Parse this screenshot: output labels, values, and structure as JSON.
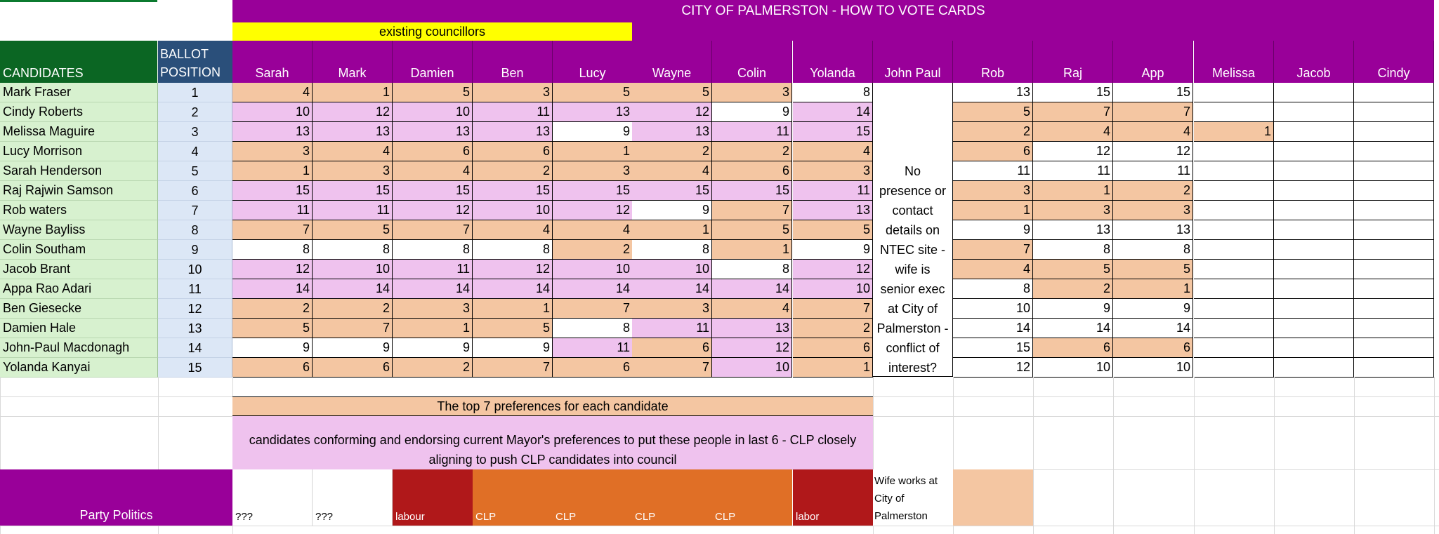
{
  "sheet": {
    "title": "CITY OF PALMERSTON - HOW TO VOTE CARDS",
    "existing_label": "existing councillors",
    "candidates_header": "CANDIDATES",
    "ballot_header_line1": "BALLOT",
    "ballot_header_line2": "POSITION",
    "columns": [
      "Sarah",
      "Mark",
      "Damien",
      "Ben",
      "Lucy",
      "Wayne",
      "Colin",
      "Yolanda",
      "John Paul",
      "Rob",
      "Raj",
      "App",
      "Melissa",
      "Jacob",
      "Cindy"
    ],
    "rows": [
      {
        "name": "Mark Fraser",
        "ballot": "1",
        "left": [
          "4",
          "1",
          "5",
          "3",
          "5",
          "5",
          "3",
          "8"
        ],
        "right": [
          "13",
          "15",
          "15",
          "",
          "",
          ""
        ]
      },
      {
        "name": "Cindy Roberts",
        "ballot": "2",
        "left": [
          "10",
          "12",
          "10",
          "11",
          "13",
          "12",
          "9",
          "14"
        ],
        "right": [
          "5",
          "7",
          "7",
          "",
          "",
          ""
        ]
      },
      {
        "name": "Melissa Maguire",
        "ballot": "3",
        "left": [
          "13",
          "13",
          "13",
          "13",
          "9",
          "13",
          "11",
          "15"
        ],
        "right": [
          "2",
          "4",
          "4",
          "1",
          "",
          ""
        ]
      },
      {
        "name": "Lucy Morrison",
        "ballot": "4",
        "left": [
          "3",
          "4",
          "6",
          "6",
          "1",
          "2",
          "2",
          "4"
        ],
        "right": [
          "6",
          "12",
          "12",
          "",
          "",
          ""
        ]
      },
      {
        "name": "Sarah Henderson",
        "ballot": "5",
        "left": [
          "1",
          "3",
          "4",
          "2",
          "3",
          "4",
          "6",
          "3"
        ],
        "right": [
          "11",
          "11",
          "11",
          "",
          "",
          ""
        ]
      },
      {
        "name": "Raj Rajwin Samson",
        "ballot": "6",
        "left": [
          "15",
          "15",
          "15",
          "15",
          "15",
          "15",
          "15",
          "11"
        ],
        "right": [
          "3",
          "1",
          "2",
          "",
          "",
          ""
        ]
      },
      {
        "name": "Rob waters",
        "ballot": "7",
        "left": [
          "11",
          "11",
          "12",
          "10",
          "12",
          "9",
          "7",
          "13"
        ],
        "right": [
          "1",
          "3",
          "3",
          "",
          "",
          ""
        ]
      },
      {
        "name": "Wayne Bayliss",
        "ballot": "8",
        "left": [
          "7",
          "5",
          "7",
          "4",
          "4",
          "1",
          "5",
          "5"
        ],
        "right": [
          "9",
          "13",
          "13",
          "",
          "",
          ""
        ]
      },
      {
        "name": "Colin Southam",
        "ballot": "9",
        "left": [
          "8",
          "8",
          "8",
          "8",
          "2",
          "8",
          "1",
          "9"
        ],
        "right": [
          "7",
          "8",
          "8",
          "",
          "",
          ""
        ]
      },
      {
        "name": "Jacob Brant",
        "ballot": "10",
        "left": [
          "12",
          "10",
          "11",
          "12",
          "10",
          "10",
          "8",
          "12"
        ],
        "right": [
          "4",
          "5",
          "5",
          "",
          "",
          ""
        ]
      },
      {
        "name": "Appa Rao Adari",
        "ballot": "11",
        "left": [
          "14",
          "14",
          "14",
          "14",
          "14",
          "14",
          "14",
          "10"
        ],
        "right": [
          "8",
          "2",
          "1",
          "",
          "",
          ""
        ]
      },
      {
        "name": "Ben Giesecke",
        "ballot": "12",
        "left": [
          "2",
          "2",
          "3",
          "1",
          "7",
          "3",
          "4",
          "7"
        ],
        "right": [
          "10",
          "9",
          "9",
          "",
          "",
          ""
        ]
      },
      {
        "name": "Damien Hale",
        "ballot": "13",
        "left": [
          "5",
          "7",
          "1",
          "5",
          "8",
          "11",
          "13",
          "2"
        ],
        "right": [
          "14",
          "14",
          "14",
          "",
          "",
          ""
        ]
      },
      {
        "name": "John-Paul Macdonagh",
        "ballot": "14",
        "left": [
          "9",
          "9",
          "9",
          "9",
          "11",
          "6",
          "12",
          "6"
        ],
        "right": [
          "15",
          "6",
          "6",
          "",
          "",
          ""
        ]
      },
      {
        "name": "Yolanda Kanyai",
        "ballot": "15",
        "left": [
          "6",
          "6",
          "2",
          "7",
          "6",
          "7",
          "10",
          "1"
        ],
        "right": [
          "12",
          "10",
          "10",
          "",
          "",
          ""
        ]
      }
    ],
    "john_paul_note": [
      "No",
      "presence or",
      "contact",
      "details on",
      "NTEC site -",
      "wife is",
      "senior exec",
      "at City of",
      "Palmerston -",
      "conflict of",
      "interest?"
    ],
    "legend_top7": "The top 7 preferences for each candidate",
    "legend_mayor_line1": "candidates conforming and endorsing current Mayor's preferences to put these people in last 6 - CLP closely",
    "legend_mayor_line2": "aligning to push CLP candidates into council",
    "party_politics_label": "Party Politics",
    "parties": [
      "???",
      "???",
      "labour",
      "CLP",
      "CLP",
      "CLP",
      "CLP",
      "labor"
    ],
    "wife_note": [
      "Wife works at",
      "City of",
      "Palmerston"
    ],
    "colors": {
      "purple": "#990099",
      "yellow": "#ffff00",
      "dark_green": "#0b6623",
      "navy": "#2a4f7a",
      "peach": "#f4c6a2",
      "pink": "#efc2ee",
      "light_green": "#d7f1cf",
      "light_blue": "#dce7f6",
      "labour_red": "#b0181a",
      "clp_orange": "#e06f26"
    }
  }
}
